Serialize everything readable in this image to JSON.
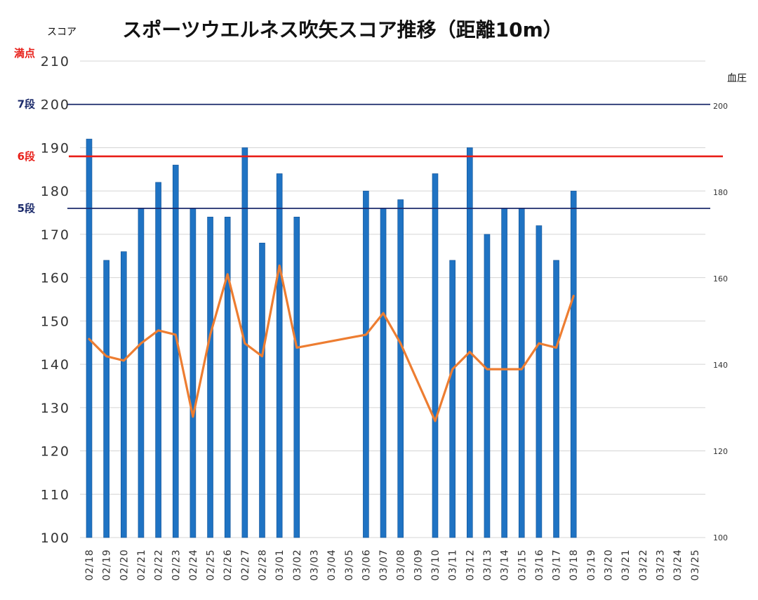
{
  "chart_data": {
    "type": "bar+line",
    "title": "スポーツウエルネス吹矢スコア推移（距離10m）",
    "ylabel_left": "スコア",
    "ylabel_right": "血圧",
    "ylim_left": [
      100,
      210
    ],
    "ylim_right": [
      100,
      200
    ],
    "yticks_left": [
      "100",
      "110",
      "120",
      "130",
      "140",
      "150",
      "160",
      "170",
      "180",
      "190",
      "200",
      "210"
    ],
    "yticks_right": [
      "100",
      "120",
      "140",
      "160",
      "180",
      "200"
    ],
    "categories": [
      "02/18",
      "02/19",
      "02/20",
      "02/21",
      "02/22",
      "02/23",
      "02/24",
      "02/25",
      "02/26",
      "02/27",
      "02/28",
      "03/01",
      "03/02",
      "03/03",
      "03/04",
      "03/05",
      "03/06",
      "03/07",
      "03/08",
      "03/09",
      "03/10",
      "03/11",
      "03/12",
      "03/13",
      "03/14",
      "03/15",
      "03/16",
      "03/17",
      "03/18",
      "03/19",
      "03/20",
      "03/21",
      "03/22",
      "03/23",
      "03/24",
      "03/25"
    ],
    "series": [
      {
        "kind": "bar",
        "axis": "left",
        "color": "#1f73c3",
        "values": [
          192,
          164,
          166,
          176,
          182,
          186,
          176,
          174,
          174,
          190,
          168,
          184,
          174,
          null,
          null,
          null,
          180,
          176,
          178,
          null,
          184,
          164,
          190,
          170,
          176,
          176,
          172,
          164,
          180,
          null,
          null,
          null,
          null,
          null,
          null,
          null
        ]
      },
      {
        "kind": "line",
        "axis": "right",
        "color": "#ed7d31",
        "values": [
          146,
          142,
          141,
          145,
          148,
          147,
          128,
          147,
          161,
          145,
          142,
          163,
          144,
          null,
          null,
          null,
          147,
          152,
          145,
          null,
          127,
          139,
          143,
          139,
          139,
          139,
          145,
          144,
          156,
          null,
          null,
          null,
          null,
          null,
          null,
          null
        ]
      }
    ],
    "reference_lines": [
      {
        "label": "満点",
        "value": 210,
        "color": "#e8201a",
        "line": false
      },
      {
        "label": "7段",
        "value": 200,
        "color": "#1b2a6b",
        "line": true
      },
      {
        "label": "6段",
        "value": 188,
        "color": "#e8201a",
        "line": true
      },
      {
        "label": "5段",
        "value": 176,
        "color": "#1b2a6b",
        "line": true
      }
    ],
    "grid": true
  }
}
